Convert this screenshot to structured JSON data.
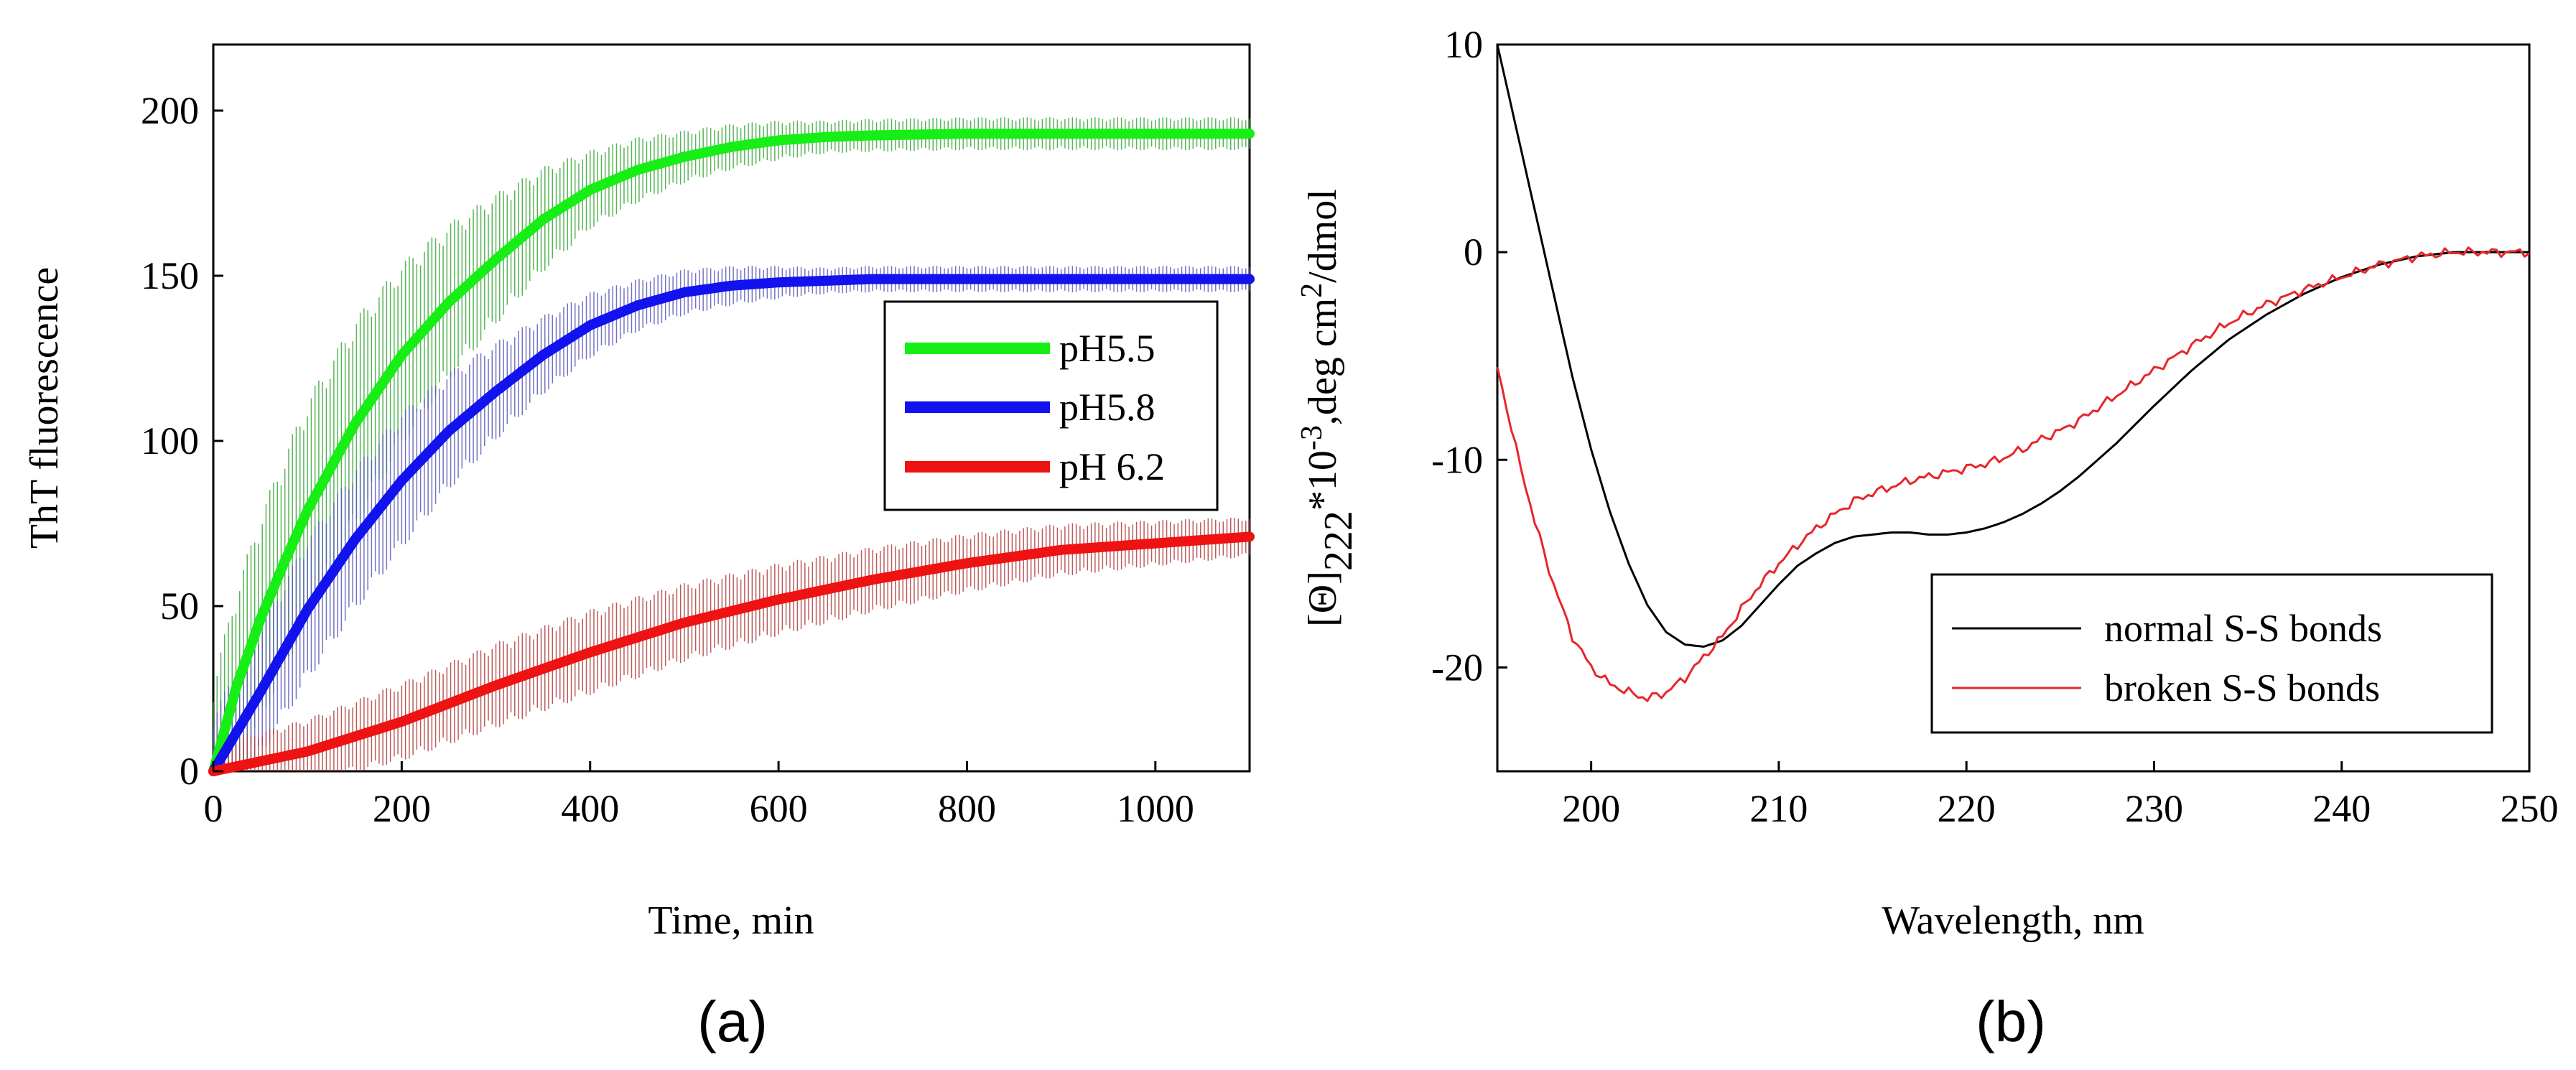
{
  "chart_data": [
    {
      "type": "line",
      "panel_label": "(a)",
      "xlabel": "Time, min",
      "ylabel": "ThT  fluorescence",
      "xlim": [
        0,
        1100
      ],
      "ylim": [
        0,
        220
      ],
      "xticks": [
        0,
        200,
        400,
        600,
        800,
        1000
      ],
      "yticks": [
        0,
        50,
        100,
        150,
        200
      ],
      "legend_position": "center-right",
      "series": [
        {
          "name": "pH5.5",
          "color": "#16ee16",
          "band_color": "#3aa83a",
          "x": [
            0,
            25,
            50,
            75,
            100,
            150,
            200,
            250,
            300,
            350,
            400,
            450,
            500,
            550,
            600,
            650,
            700,
            800,
            900,
            1000,
            1100
          ],
          "y": [
            0,
            26,
            46,
            63,
            79,
            105,
            126,
            142,
            155,
            167,
            176,
            182,
            186,
            189,
            191,
            192,
            192.5,
            193,
            193,
            193,
            193
          ],
          "error": [
            28,
            30,
            32,
            33,
            34,
            32,
            28,
            24,
            20,
            16,
            12,
            10,
            8,
            7,
            6,
            5,
            5,
            5,
            5,
            5,
            5
          ]
        },
        {
          "name": "pH5.8",
          "color": "#1212ee",
          "band_color": "#5a5ab8",
          "x": [
            0,
            50,
            100,
            150,
            200,
            250,
            300,
            350,
            400,
            450,
            500,
            550,
            600,
            650,
            700,
            800,
            900,
            1000,
            1100
          ],
          "y": [
            0,
            24,
            49,
            70,
            88,
            103,
            115,
            126,
            135,
            141,
            145,
            147,
            148,
            148.5,
            149,
            149,
            149,
            149,
            149
          ],
          "error": [
            18,
            20,
            22,
            22,
            21,
            18,
            15,
            12,
            10,
            8,
            7,
            6,
            5,
            4,
            4,
            4,
            4,
            4,
            4
          ]
        },
        {
          "name": "pH 6.2",
          "color": "#ee1212",
          "band_color": "#b04040",
          "x": [
            0,
            100,
            200,
            300,
            400,
            500,
            600,
            700,
            800,
            900,
            1000,
            1100
          ],
          "y": [
            0,
            6,
            15,
            26,
            36,
            45,
            52,
            58,
            63,
            67,
            69,
            71
          ],
          "error": [
            8,
            10,
            12,
            13,
            13,
            12,
            11,
            10,
            9,
            8,
            7,
            6
          ]
        }
      ]
    },
    {
      "type": "line",
      "panel_label": "(b)",
      "xlabel": "Wavelength, nm",
      "ylabel_theta": "[Θ]",
      "ylabel_sub": "222",
      "ylabel_mid": "*10",
      "ylabel_exp1": "-3",
      "ylabel_mid2": ",deg cm",
      "ylabel_exp2": "2",
      "ylabel_end": "/dmol",
      "xlim": [
        195,
        250
      ],
      "ylim": [
        -25,
        10
      ],
      "xticks": [
        200,
        210,
        220,
        230,
        240,
        250
      ],
      "yticks": [
        -20,
        -10,
        0,
        10
      ],
      "legend_position": "lower-right",
      "series": [
        {
          "name": "normal S-S bonds",
          "color": "#000000",
          "x": [
            195,
            196,
            197,
            198,
            199,
            200,
            201,
            202,
            203,
            204,
            205,
            206,
            207,
            208,
            209,
            210,
            211,
            212,
            213,
            214,
            215,
            216,
            217,
            218,
            219,
            220,
            221,
            222,
            223,
            224,
            225,
            226,
            227,
            228,
            229,
            230,
            232,
            234,
            236,
            238,
            240,
            242,
            244,
            246,
            248,
            250
          ],
          "y": [
            10,
            6,
            2,
            -2,
            -6,
            -9.5,
            -12.5,
            -15,
            -17,
            -18.3,
            -18.9,
            -19,
            -18.7,
            -18,
            -17,
            -16,
            -15.1,
            -14.5,
            -14,
            -13.7,
            -13.6,
            -13.5,
            -13.5,
            -13.6,
            -13.6,
            -13.5,
            -13.3,
            -13,
            -12.6,
            -12.1,
            -11.5,
            -10.8,
            -10,
            -9.2,
            -8.3,
            -7.4,
            -5.7,
            -4.2,
            -3,
            -2,
            -1.2,
            -0.6,
            -0.2,
            0,
            0,
            0
          ]
        },
        {
          "name": "broken S-S bonds",
          "color": "#e8262a",
          "x": [
            195,
            196,
            197,
            198,
            199,
            200,
            201,
            202,
            203,
            204,
            205,
            206,
            207,
            208,
            209,
            210,
            211,
            212,
            213,
            214,
            215,
            216,
            217,
            218,
            219,
            220,
            221,
            222,
            223,
            224,
            225,
            226,
            227,
            228,
            229,
            230,
            232,
            234,
            236,
            238,
            240,
            242,
            244,
            246,
            248,
            250
          ],
          "y": [
            -5.5,
            -9.5,
            -13,
            -16,
            -18.5,
            -20,
            -20.8,
            -21.2,
            -21.5,
            -21.2,
            -20.5,
            -19.5,
            -18.5,
            -17.2,
            -16,
            -15,
            -14.1,
            -13.3,
            -12.6,
            -12,
            -11.6,
            -11.3,
            -11,
            -10.8,
            -10.6,
            -10.4,
            -10.2,
            -9.9,
            -9.5,
            -9,
            -8.6,
            -8.1,
            -7.5,
            -6.9,
            -6.3,
            -5.7,
            -4.5,
            -3.4,
            -2.5,
            -1.8,
            -1.2,
            -0.6,
            -0.2,
            0,
            0,
            0
          ]
        }
      ]
    }
  ]
}
